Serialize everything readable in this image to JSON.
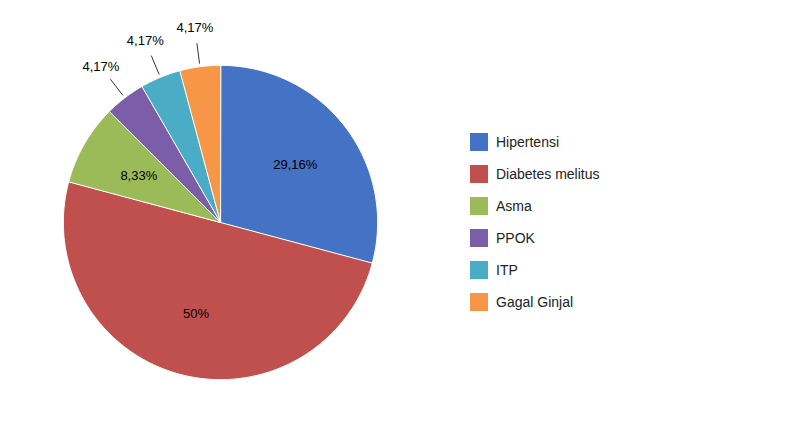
{
  "chart_data": {
    "type": "pie",
    "categories": [
      "Hipertensi",
      "Diabetes melitus",
      "Asma",
      "PPOK",
      "ITP",
      "Gagal Ginjal"
    ],
    "values": [
      29.16,
      50,
      8.33,
      4.17,
      4.17,
      4.17
    ],
    "value_labels": [
      "29,16%",
      "50%",
      "8,33%",
      "4,17%",
      "4,17%",
      "4,17%"
    ],
    "colors": [
      "#4472C4",
      "#C0504D",
      "#9BBB59",
      "#7B5EA7",
      "#4BACC6",
      "#F79646"
    ],
    "data_labels": true,
    "legend": "right"
  }
}
